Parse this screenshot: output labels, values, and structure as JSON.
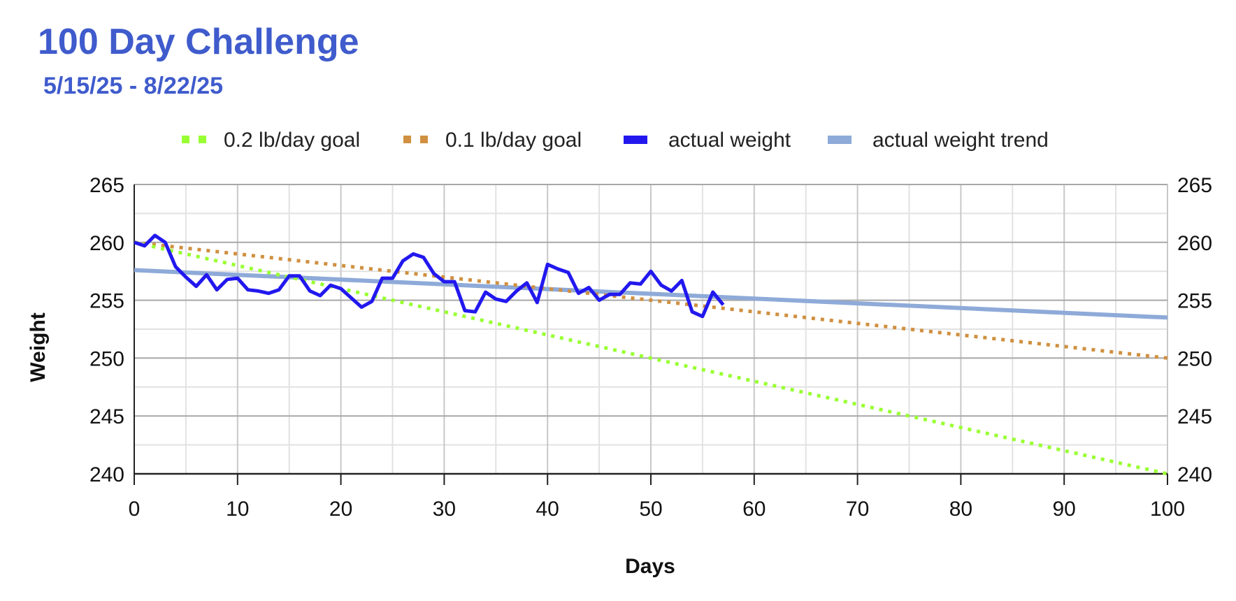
{
  "chart_data": {
    "type": "line",
    "title": "100 Day Challenge",
    "subtitle": "5/15/25 - 8/22/25",
    "xlabel": "Days",
    "ylabel": "Weight",
    "xlim": [
      0,
      100
    ],
    "ylim": [
      240,
      265
    ],
    "x_ticks": [
      0,
      10,
      20,
      30,
      40,
      50,
      60,
      70,
      80,
      90,
      100
    ],
    "y_ticks": [
      240,
      245,
      250,
      255,
      260,
      265
    ],
    "secondary_y_axis": true,
    "grid": true,
    "legend_position": "top",
    "series": [
      {
        "name": "0.2 lb/day goal",
        "style": "dotted",
        "color": "#99ff33",
        "x": [
          0,
          100
        ],
        "y": [
          260,
          240
        ]
      },
      {
        "name": "0.1 lb/day goal",
        "style": "dotted",
        "color": "#d09040",
        "x": [
          0,
          100
        ],
        "y": [
          260,
          250
        ]
      },
      {
        "name": "actual weight",
        "style": "solid",
        "color": "#2218ee",
        "x": [
          0,
          1,
          2,
          3,
          4,
          5,
          6,
          7,
          8,
          9,
          10,
          11,
          12,
          13,
          14,
          15,
          16,
          17,
          18,
          19,
          20,
          21,
          22,
          23,
          24,
          25,
          26,
          27,
          28,
          29,
          30,
          31,
          32,
          33,
          34,
          35,
          36,
          37,
          38,
          39,
          40,
          41,
          42,
          43,
          44,
          45,
          46,
          47,
          48,
          49,
          50,
          51,
          52,
          53,
          54,
          55,
          56,
          57
        ],
        "y": [
          260.0,
          259.7,
          260.6,
          260.0,
          257.9,
          257.0,
          256.2,
          257.2,
          255.9,
          256.8,
          256.9,
          255.9,
          255.8,
          255.6,
          255.9,
          257.1,
          257.1,
          255.8,
          255.4,
          256.3,
          256.0,
          255.2,
          254.4,
          254.9,
          256.9,
          256.9,
          258.4,
          259.0,
          258.7,
          257.3,
          256.6,
          256.6,
          254.1,
          254.0,
          255.7,
          255.1,
          254.9,
          255.8,
          256.5,
          254.8,
          258.1,
          257.7,
          257.4,
          255.6,
          256.1,
          255.0,
          255.5,
          255.5,
          256.5,
          256.4,
          257.5,
          256.3,
          255.8,
          256.7,
          254.0,
          253.6,
          255.7,
          254.6
        ]
      },
      {
        "name": "actual weight trend",
        "style": "solid",
        "color": "#8eaad8",
        "x": [
          0,
          100
        ],
        "y": [
          257.6,
          253.5
        ]
      }
    ]
  }
}
